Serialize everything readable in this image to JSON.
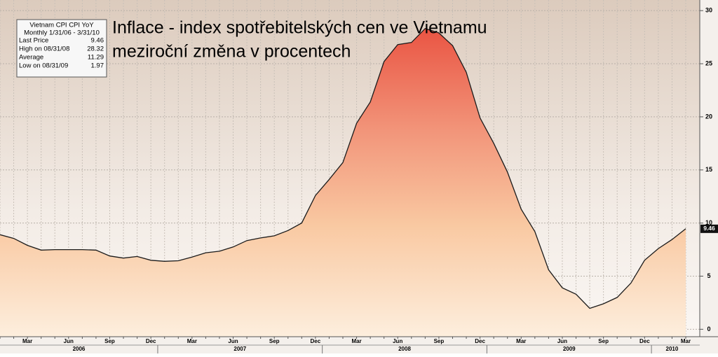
{
  "chart_data": {
    "type": "area",
    "title": "Inflace - index spotřebitelských cen ve Vietnamu",
    "subtitle": "meziroční změna v procentech",
    "categories": [
      null,
      null,
      "Mar",
      null,
      null,
      "Jun",
      null,
      null,
      "Sep",
      null,
      null,
      "Dec",
      null,
      null,
      "Mar",
      null,
      null,
      "Jun",
      null,
      null,
      "Sep",
      null,
      null,
      "Dec",
      null,
      null,
      "Mar",
      null,
      null,
      "Jun",
      null,
      null,
      "Sep",
      null,
      null,
      "Dec",
      null,
      null,
      "Mar",
      null,
      null,
      "Jun",
      null,
      null,
      "Sep",
      null,
      null,
      "Dec",
      null,
      null,
      "Mar"
    ],
    "year_labels": [
      "2006",
      "2007",
      "2008",
      "2009",
      "2010"
    ],
    "values": [
      8.9,
      8.55,
      7.9,
      7.45,
      7.5,
      7.5,
      7.5,
      7.45,
      6.9,
      6.7,
      6.85,
      6.5,
      6.4,
      6.45,
      6.8,
      7.2,
      7.35,
      7.75,
      8.35,
      8.6,
      8.8,
      9.3,
      10.0,
      12.6,
      14.1,
      15.7,
      19.4,
      21.4,
      25.2,
      26.8,
      27.0,
      28.32,
      27.9,
      26.7,
      24.2,
      19.9,
      17.5,
      14.8,
      11.3,
      9.2,
      5.6,
      3.9,
      3.3,
      1.97,
      2.4,
      3.0,
      4.35,
      6.5,
      7.6,
      8.45,
      9.46
    ],
    "color": "#1a1a1a",
    "ylim": [
      -0.7,
      31
    ],
    "yticks": [
      0,
      5,
      10,
      15,
      20,
      25,
      30
    ],
    "grid": true,
    "info_box": {
      "title": "Vietnam CPI  CPI YoY",
      "period": "Monthly 1/31/06 - 3/31/10",
      "rows": [
        [
          "Last Price",
          "9.46"
        ],
        [
          "High on 08/31/08",
          "28.32"
        ],
        [
          "Average",
          "11.29"
        ],
        [
          "Low on 08/31/09",
          "1.97"
        ]
      ]
    }
  }
}
